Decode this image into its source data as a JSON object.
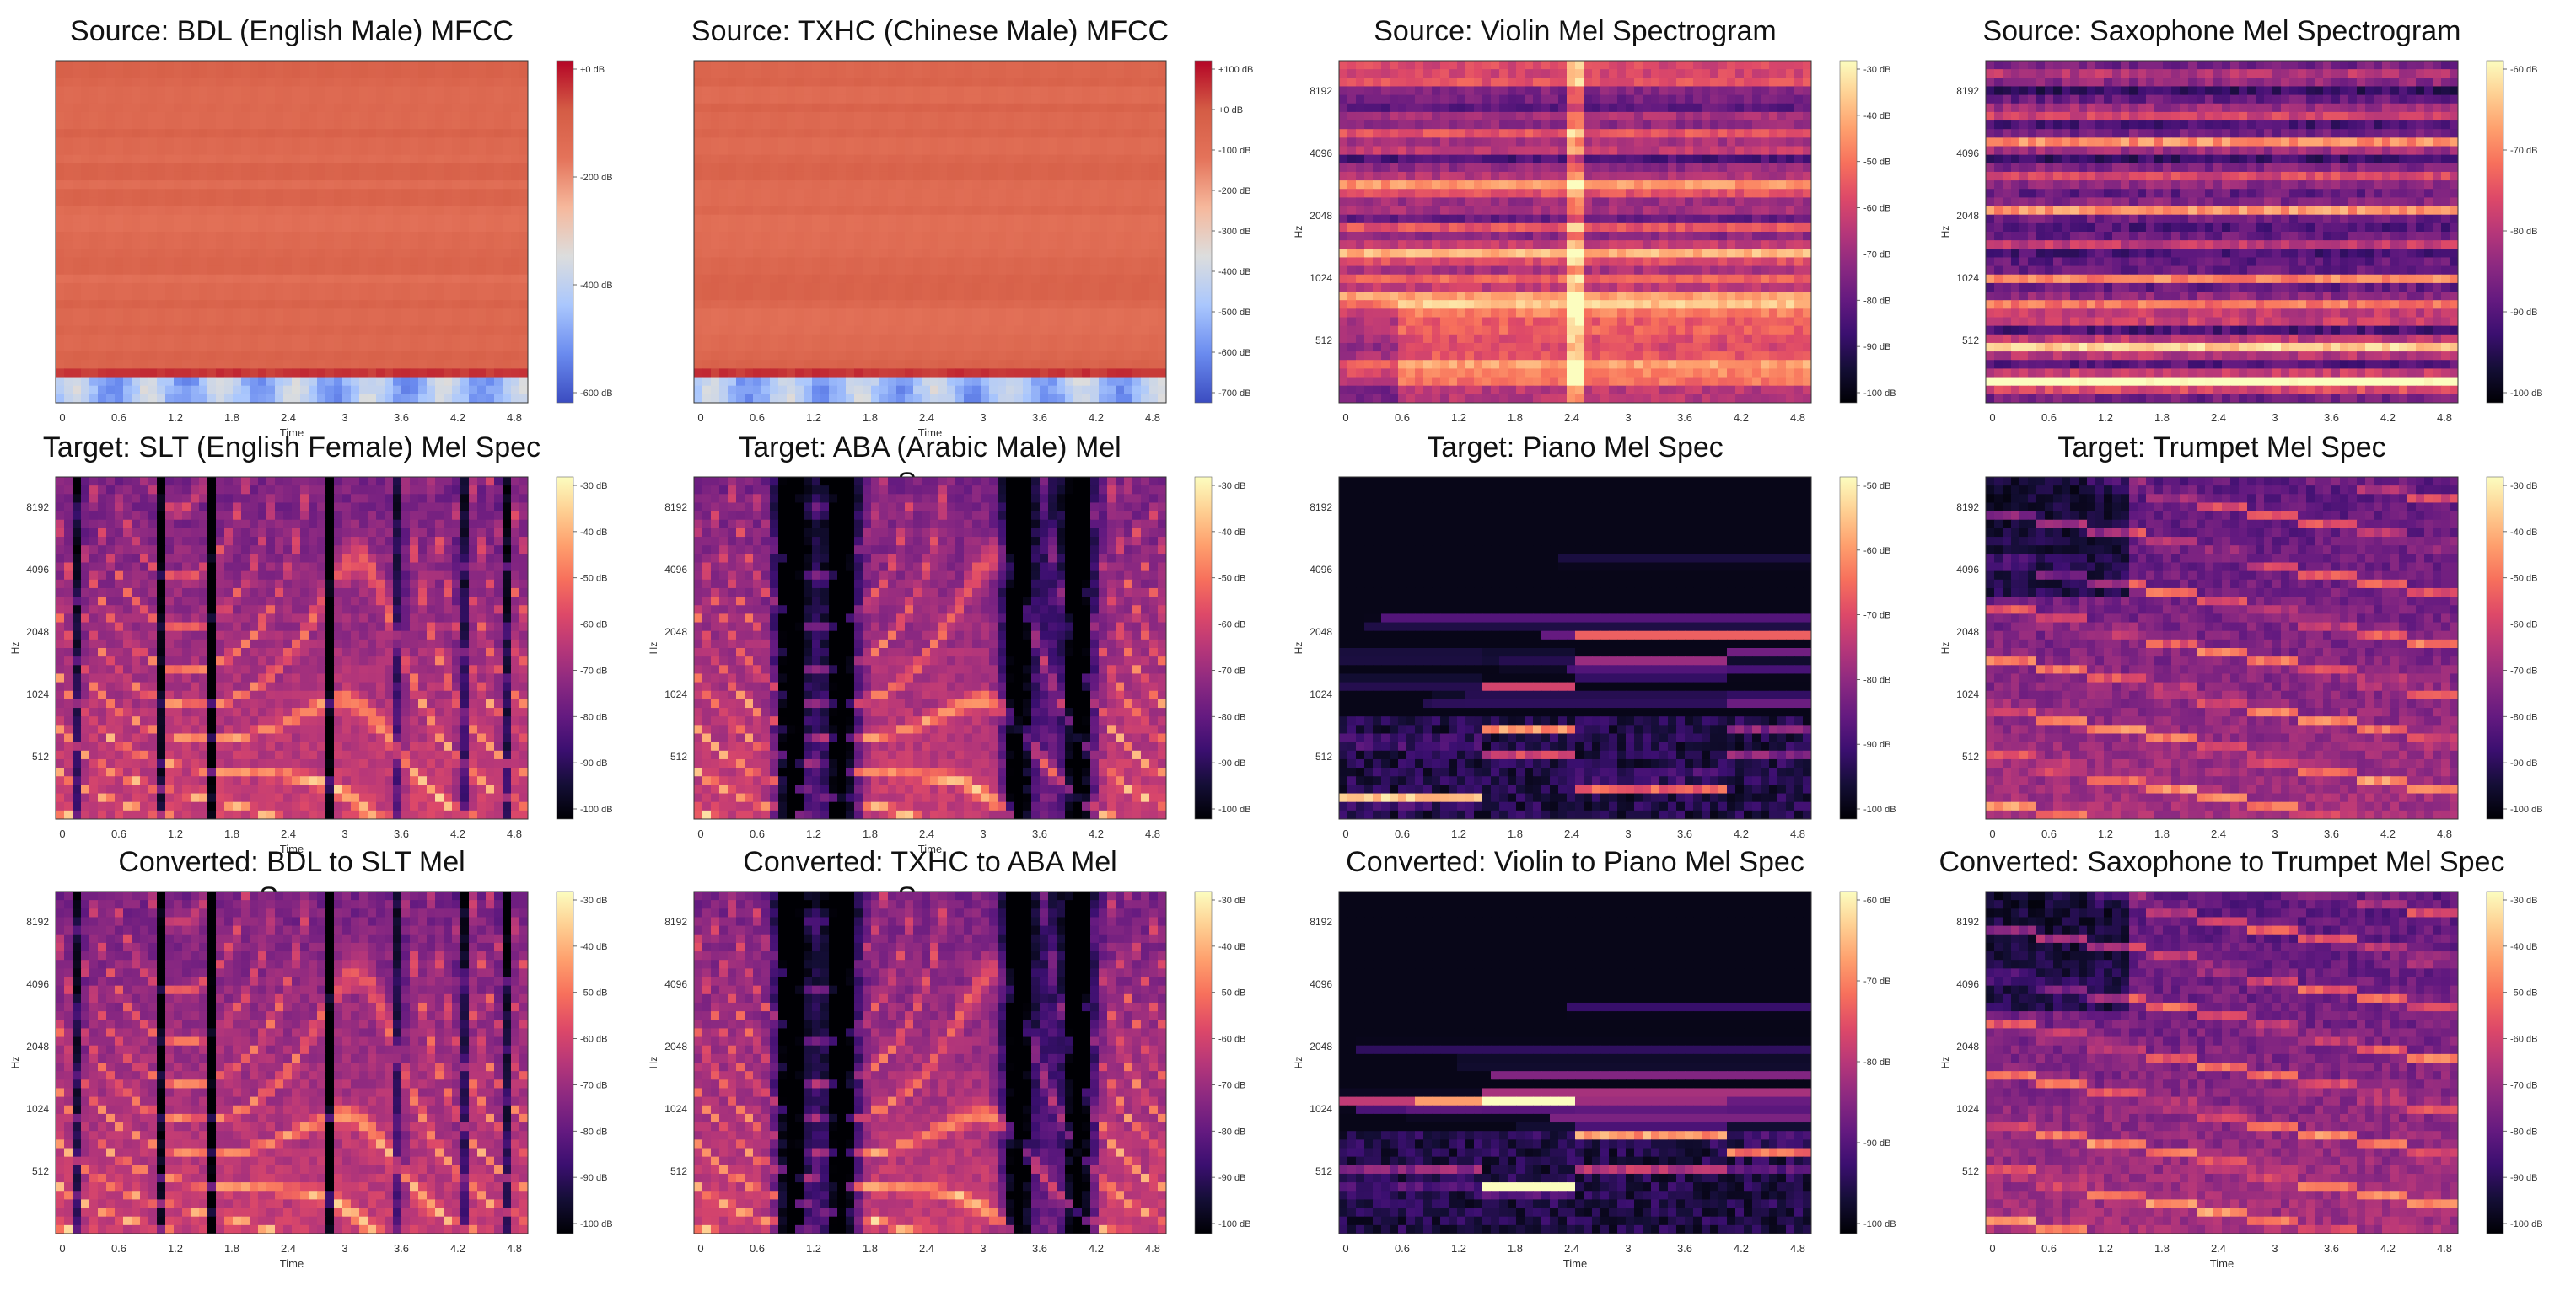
{
  "colors": {
    "magma": [
      "#000004",
      "#140e36",
      "#3b0f70",
      "#641a80",
      "#8c2981",
      "#b73779",
      "#de4968",
      "#f7705c",
      "#fe9f6d",
      "#fecf92",
      "#fcfdbf"
    ],
    "coolwarm": [
      "#3b4cc0",
      "#6a8bef",
      "#aac7fd",
      "#dcdddd",
      "#f6b89c",
      "#e4735a",
      "#d45c45",
      "#b40426"
    ]
  },
  "grid": {
    "xticks": [
      "0",
      "0.6",
      "1.2",
      "1.8",
      "2.4",
      "3",
      "3.6",
      "4.2",
      "4.8"
    ],
    "yticks": [
      "512",
      "1024",
      "2048",
      "4096",
      "8192"
    ],
    "ylabel": "Hz",
    "xlabel": "Time"
  },
  "chart_data": [
    {
      "type": "heatmap",
      "id": "bdl-mfcc",
      "kind": "mfcc",
      "title": [
        "Source: BDL (English Male) MFCC"
      ],
      "colormap": "coolwarm",
      "show_yticks": false,
      "show_xlabel": true,
      "cbar_ticks": [
        "+0 dB",
        "-200 dB",
        "-400 dB",
        "-600 dB"
      ]
    },
    {
      "type": "heatmap",
      "id": "txhc-mfcc",
      "kind": "mfcc",
      "title": [
        "Source: TXHC (Chinese Male) MFCC"
      ],
      "colormap": "coolwarm",
      "show_yticks": false,
      "show_xlabel": true,
      "cbar_ticks": [
        "+100 dB",
        "+0 dB",
        "-100 dB",
        "-200 dB",
        "-300 dB",
        "-400 dB",
        "-500 dB",
        "-600 dB",
        "-700 dB"
      ]
    },
    {
      "type": "heatmap",
      "id": "violin-src",
      "kind": "inst",
      "title": [
        "Source: Violin Mel Spectrogram"
      ],
      "colormap": "magma",
      "show_yticks": true,
      "show_xlabel": false,
      "cbar_ticks": [
        "-30 dB",
        "-40 dB",
        "-50 dB",
        "-60 dB",
        "-70 dB",
        "-80 dB",
        "-90 dB",
        "-100 dB"
      ]
    },
    {
      "type": "heatmap",
      "id": "sax-src",
      "kind": "sax",
      "title": [
        "Source: Saxophone Mel Spectrogram"
      ],
      "colormap": "magma",
      "show_yticks": true,
      "show_xlabel": false,
      "cbar_ticks": [
        "-60 dB",
        "-70 dB",
        "-80 dB",
        "-90 dB",
        "-100 dB"
      ]
    },
    {
      "type": "heatmap",
      "id": "slt-tgt",
      "kind": "speech",
      "title": [
        "Target: SLT (English Female) Mel Spec"
      ],
      "colormap": "magma",
      "show_yticks": true,
      "show_xlabel": true,
      "cbar_ticks": [
        "-30 dB",
        "-40 dB",
        "-50 dB",
        "-60 dB",
        "-70 dB",
        "-80 dB",
        "-90 dB",
        "-100 dB"
      ]
    },
    {
      "type": "heatmap",
      "id": "aba-tgt",
      "kind": "speech2",
      "title": [
        "Target: ABA (Arabic Male) Mel",
        "Spec"
      ],
      "colormap": "magma",
      "show_yticks": true,
      "show_xlabel": true,
      "cbar_ticks": [
        "-30 dB",
        "-40 dB",
        "-50 dB",
        "-60 dB",
        "-70 dB",
        "-80 dB",
        "-90 dB",
        "-100 dB"
      ]
    },
    {
      "type": "heatmap",
      "id": "piano-tgt",
      "kind": "piano",
      "title": [
        "Target: Piano Mel Spec"
      ],
      "colormap": "magma",
      "show_yticks": true,
      "show_xlabel": false,
      "cbar_ticks": [
        "-50 dB",
        "-60 dB",
        "-70 dB",
        "-80 dB",
        "-90 dB",
        "-100 dB"
      ]
    },
    {
      "type": "heatmap",
      "id": "trumpet-tgt",
      "kind": "trumpet",
      "title": [
        "Target: Trumpet Mel Spec"
      ],
      "colormap": "magma",
      "show_yticks": true,
      "show_xlabel": false,
      "cbar_ticks": [
        "-30 dB",
        "-40 dB",
        "-50 dB",
        "-60 dB",
        "-70 dB",
        "-80 dB",
        "-90 dB",
        "-100 dB"
      ]
    },
    {
      "type": "heatmap",
      "id": "bdl-slt-conv",
      "kind": "speech",
      "title": [
        "Converted: BDL to SLT Mel",
        "Spec"
      ],
      "colormap": "magma",
      "show_yticks": true,
      "show_xlabel": true,
      "cbar_ticks": [
        "-30 dB",
        "-40 dB",
        "-50 dB",
        "-60 dB",
        "-70 dB",
        "-80 dB",
        "-90 dB",
        "-100 dB"
      ]
    },
    {
      "type": "heatmap",
      "id": "txhc-aba-conv",
      "kind": "speech2",
      "title": [
        "Converted: TXHC to ABA Mel",
        "Spec"
      ],
      "colormap": "magma",
      "show_yticks": true,
      "show_xlabel": false,
      "cbar_ticks": [
        "-30 dB",
        "-40 dB",
        "-50 dB",
        "-60 dB",
        "-70 dB",
        "-80 dB",
        "-90 dB",
        "-100 dB"
      ]
    },
    {
      "type": "heatmap",
      "id": "violin-piano-conv",
      "kind": "piano",
      "title": [
        "Converted: Violin to Piano Mel Spec"
      ],
      "colormap": "magma",
      "show_yticks": true,
      "show_xlabel": true,
      "cbar_ticks": [
        "-60 dB",
        "-70 dB",
        "-80 dB",
        "-90 dB",
        "-100 dB"
      ]
    },
    {
      "type": "heatmap",
      "id": "sax-trumpet-conv",
      "kind": "trumpet",
      "title": [
        "Converted: Saxophone to Trumpet Mel Spec"
      ],
      "colormap": "magma",
      "show_yticks": true,
      "show_xlabel": true,
      "cbar_ticks": [
        "-30 dB",
        "-40 dB",
        "-50 dB",
        "-60 dB",
        "-70 dB",
        "-80 dB",
        "-90 dB",
        "-100 dB"
      ]
    }
  ]
}
